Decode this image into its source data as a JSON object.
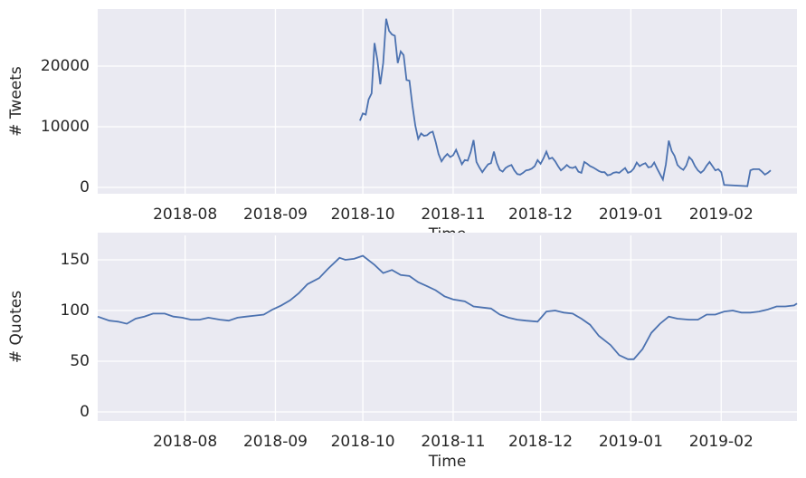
{
  "chart_data": [
    {
      "type": "line",
      "xlabel": "Time",
      "ylabel": "# Tweets",
      "xlim": [
        "2018-07-02",
        "2019-02-27"
      ],
      "ylim": [
        -1045,
        29400
      ],
      "xticks": [
        {
          "value": "2018-08-01",
          "label": "2018-08"
        },
        {
          "value": "2018-09-01",
          "label": "2018-09"
        },
        {
          "value": "2018-10-01",
          "label": "2018-10"
        },
        {
          "value": "2018-11-01",
          "label": "2018-11"
        },
        {
          "value": "2018-12-01",
          "label": "2018-12"
        },
        {
          "value": "2019-01-01",
          "label": "2019-01"
        },
        {
          "value": "2019-02-01",
          "label": "2019-02"
        }
      ],
      "yticks": [
        0,
        10000,
        20000
      ],
      "grid": true,
      "x": [
        "2018-09-30",
        "2018-10-01",
        "2018-10-02",
        "2018-10-03",
        "2018-10-04",
        "2018-10-05",
        "2018-10-06",
        "2018-10-07",
        "2018-10-08",
        "2018-10-09",
        "2018-10-10",
        "2018-10-11",
        "2018-10-12",
        "2018-10-13",
        "2018-10-14",
        "2018-10-15",
        "2018-10-16",
        "2018-10-17",
        "2018-10-18",
        "2018-10-19",
        "2018-10-20",
        "2018-10-21",
        "2018-10-22",
        "2018-10-23",
        "2018-10-24",
        "2018-10-25",
        "2018-10-26",
        "2018-10-27",
        "2018-10-28",
        "2018-10-29",
        "2018-10-30",
        "2018-10-31",
        "2018-11-01",
        "2018-11-02",
        "2018-11-03",
        "2018-11-04",
        "2018-11-05",
        "2018-11-06",
        "2018-11-07",
        "2018-11-08",
        "2018-11-09",
        "2018-11-10",
        "2018-11-11",
        "2018-11-12",
        "2018-11-13",
        "2018-11-14",
        "2018-11-15",
        "2018-11-16",
        "2018-11-17",
        "2018-11-18",
        "2018-11-19",
        "2018-11-20",
        "2018-11-21",
        "2018-11-22",
        "2018-11-23",
        "2018-11-24",
        "2018-11-25",
        "2018-11-26",
        "2018-11-27",
        "2018-11-28",
        "2018-11-29",
        "2018-11-30",
        "2018-12-01",
        "2018-12-02",
        "2018-12-03",
        "2018-12-04",
        "2018-12-05",
        "2018-12-06",
        "2018-12-07",
        "2018-12-08",
        "2018-12-09",
        "2018-12-10",
        "2018-12-11",
        "2018-12-12",
        "2018-12-13",
        "2018-12-14",
        "2018-12-15",
        "2018-12-16",
        "2018-12-17",
        "2018-12-18",
        "2018-12-19",
        "2018-12-20",
        "2018-12-21",
        "2018-12-22",
        "2018-12-23",
        "2018-12-24",
        "2018-12-25",
        "2018-12-26",
        "2018-12-27",
        "2018-12-28",
        "2018-12-29",
        "2018-12-30",
        "2018-12-31",
        "2019-01-01",
        "2019-01-02",
        "2019-01-03",
        "2019-01-04",
        "2019-01-05",
        "2019-01-06",
        "2019-01-07",
        "2019-01-08",
        "2019-01-09",
        "2019-01-10",
        "2019-01-11",
        "2019-01-12",
        "2019-01-13",
        "2019-01-14",
        "2019-01-15",
        "2019-01-16",
        "2019-01-17",
        "2019-01-18",
        "2019-01-19",
        "2019-01-20",
        "2019-01-21",
        "2019-01-22",
        "2019-01-23",
        "2019-01-24",
        "2019-01-25",
        "2019-01-26",
        "2019-01-27",
        "2019-01-28",
        "2019-01-29",
        "2019-01-30",
        "2019-01-31",
        "2019-02-01",
        "2019-02-02",
        "2019-02-10",
        "2019-02-11",
        "2019-02-12",
        "2019-02-14",
        "2019-02-15",
        "2019-02-16",
        "2019-02-17",
        "2019-02-18"
      ],
      "series": [
        {
          "color": "#4c72b0",
          "values": [
            11000,
            12200,
            12000,
            14500,
            15500,
            23800,
            21000,
            17000,
            20500,
            27800,
            25800,
            25200,
            25000,
            20500,
            22400,
            21800,
            17700,
            17600,
            13500,
            10200,
            8000,
            8900,
            8500,
            8600,
            9000,
            9200,
            7500,
            5500,
            4300,
            5000,
            5500,
            5000,
            5300,
            6200,
            5000,
            3800,
            4500,
            4400,
            5800,
            7800,
            4200,
            3300,
            2500,
            3200,
            3800,
            4000,
            5900,
            4000,
            2900,
            2600,
            3200,
            3500,
            3700,
            2800,
            2200,
            2100,
            2400,
            2800,
            2900,
            3100,
            3500,
            4500,
            3900,
            4800,
            5900,
            4700,
            4900,
            4300,
            3500,
            2800,
            3200,
            3700,
            3300,
            3200,
            3400,
            2600,
            2400,
            4200,
            3900,
            3500,
            3300,
            3000,
            2700,
            2500,
            2500,
            2000,
            2100,
            2400,
            2500,
            2400,
            2800,
            3200,
            2400,
            2600,
            3100,
            4100,
            3500,
            3800,
            4000,
            3300,
            3400,
            4100,
            3100,
            2200,
            1300,
            3800,
            7700,
            6000,
            5200,
            3700,
            3200,
            2900,
            3600,
            5000,
            4500,
            3500,
            2800,
            2400,
            2800,
            3600,
            4200,
            3500,
            2800,
            3000,
            2500,
            400,
            200,
            2800,
            3000,
            3000,
            2600,
            2100,
            2400,
            2800
          ]
        }
      ]
    },
    {
      "type": "line",
      "xlabel": "Time",
      "ylabel": "# Quotes",
      "xlim": [
        "2018-07-02",
        "2019-02-27"
      ],
      "ylim": [
        -8.9,
        176.8
      ],
      "xticks": [
        {
          "value": "2018-08-01",
          "label": "2018-08"
        },
        {
          "value": "2018-09-01",
          "label": "2018-09"
        },
        {
          "value": "2018-10-01",
          "label": "2018-10"
        },
        {
          "value": "2018-11-01",
          "label": "2018-11"
        },
        {
          "value": "2018-12-01",
          "label": "2018-12"
        },
        {
          "value": "2019-01-01",
          "label": "2019-01"
        },
        {
          "value": "2019-02-01",
          "label": "2019-02"
        }
      ],
      "yticks": [
        0,
        50,
        100,
        150
      ],
      "grid": true,
      "x": [
        "2018-07-02",
        "2018-07-06",
        "2018-07-09",
        "2018-07-12",
        "2018-07-15",
        "2018-07-18",
        "2018-07-21",
        "2018-07-25",
        "2018-07-28",
        "2018-07-31",
        "2018-08-03",
        "2018-08-06",
        "2018-08-09",
        "2018-08-13",
        "2018-08-16",
        "2018-08-19",
        "2018-08-22",
        "2018-08-25",
        "2018-08-28",
        "2018-08-31",
        "2018-09-03",
        "2018-09-06",
        "2018-09-09",
        "2018-09-12",
        "2018-09-16",
        "2018-09-19",
        "2018-09-23",
        "2018-09-25",
        "2018-09-28",
        "2018-10-01",
        "2018-10-05",
        "2018-10-08",
        "2018-10-11",
        "2018-10-14",
        "2018-10-17",
        "2018-10-20",
        "2018-10-23",
        "2018-10-26",
        "2018-10-29",
        "2018-11-01",
        "2018-11-05",
        "2018-11-08",
        "2018-11-11",
        "2018-11-14",
        "2018-11-17",
        "2018-11-20",
        "2018-11-23",
        "2018-11-26",
        "2018-11-30",
        "2018-12-03",
        "2018-12-06",
        "2018-12-09",
        "2018-12-12",
        "2018-12-15",
        "2018-12-18",
        "2018-12-21",
        "2018-12-25",
        "2018-12-28",
        "2018-12-31",
        "2019-01-02",
        "2019-01-05",
        "2019-01-08",
        "2019-01-11",
        "2019-01-14",
        "2019-01-17",
        "2019-01-21",
        "2019-01-24",
        "2019-01-27",
        "2019-01-30",
        "2019-02-02",
        "2019-02-05",
        "2019-02-08",
        "2019-02-11",
        "2019-02-14",
        "2019-02-17",
        "2019-02-20",
        "2019-02-23",
        "2019-02-26",
        "2019-02-27"
      ],
      "series": [
        {
          "color": "#4c72b0",
          "values": [
            94,
            90,
            89,
            87,
            92,
            94,
            97,
            97,
            94,
            93,
            91,
            91,
            93,
            91,
            90,
            93,
            94,
            95,
            96,
            101,
            105,
            110,
            117,
            126,
            132,
            141,
            152,
            150,
            151,
            154,
            145,
            137,
            140,
            135,
            134,
            128,
            124,
            120,
            114,
            111,
            109,
            104,
            103,
            102,
            96,
            93,
            91,
            90,
            89,
            99,
            100,
            98,
            97,
            92,
            86,
            75,
            66,
            56,
            52,
            52,
            62,
            78,
            87,
            94,
            92,
            91,
            91,
            96,
            96,
            99,
            100,
            98,
            98,
            99,
            101,
            104,
            104,
            105,
            107
          ]
        }
      ]
    }
  ]
}
